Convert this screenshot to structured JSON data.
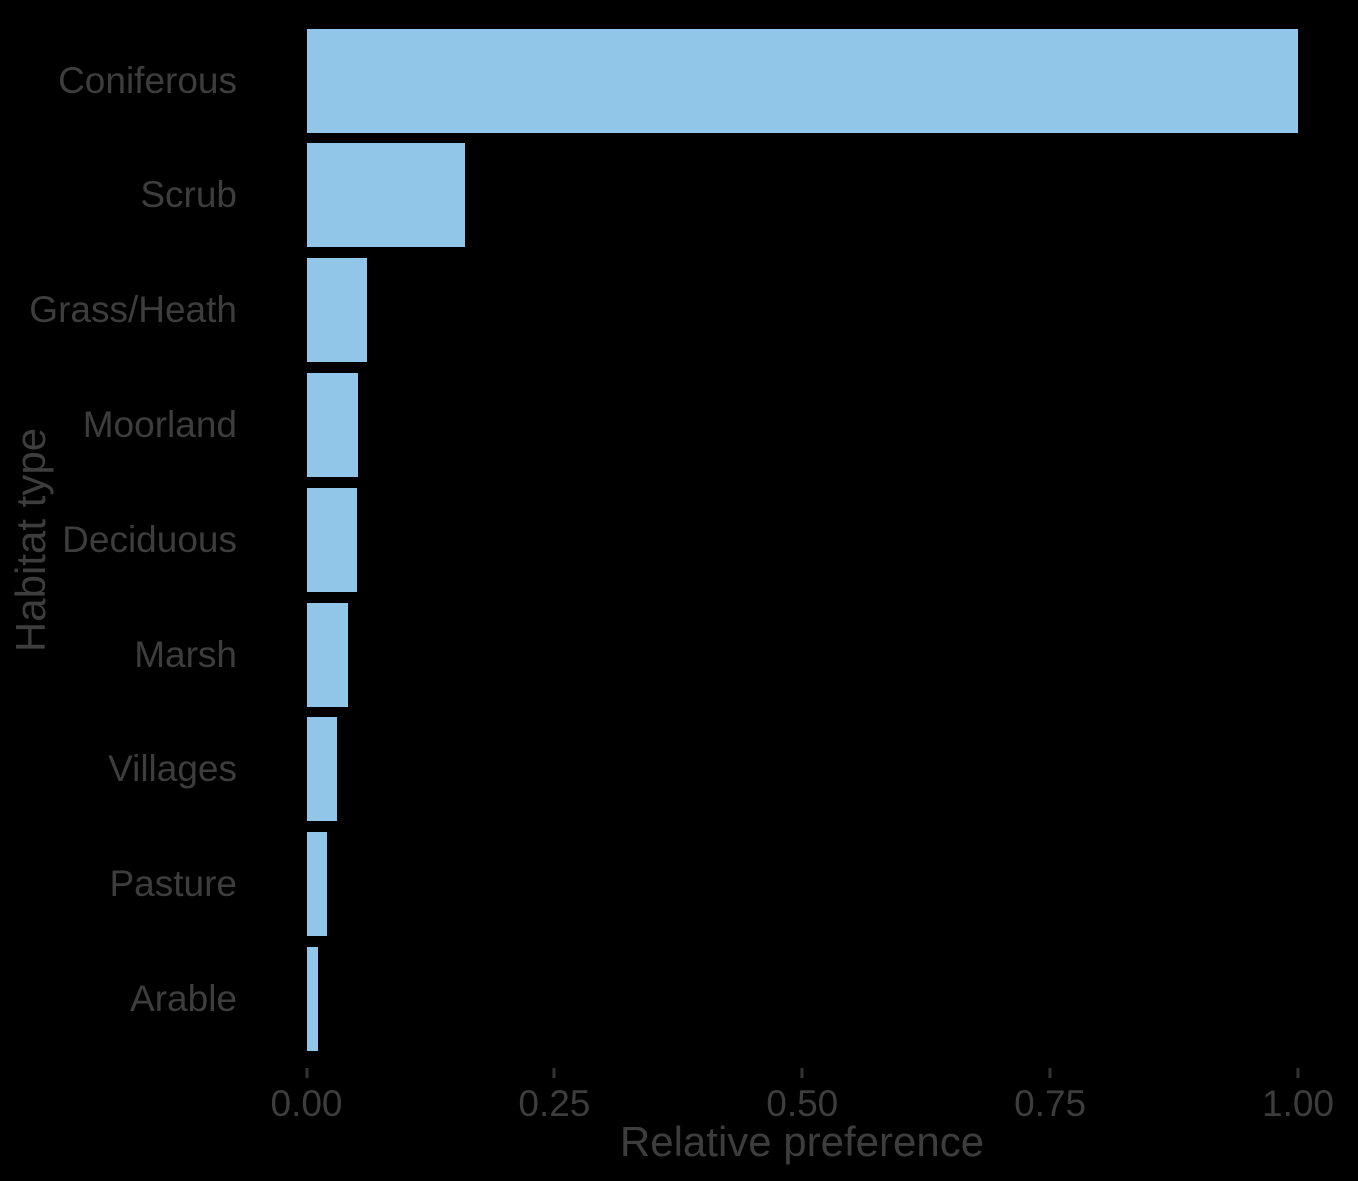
{
  "chart_data": {
    "type": "bar",
    "orientation": "horizontal",
    "title": "",
    "xlabel": "Relative preference",
    "ylabel": "Habitat type",
    "categories": [
      "Coniferous",
      "Scrub",
      "Grass/Heath",
      "Moorland",
      "Deciduous",
      "Marsh",
      "Villages",
      "Pasture",
      "Arable"
    ],
    "values": [
      1.0,
      0.16,
      0.061,
      0.052,
      0.051,
      0.042,
      0.031,
      0.021,
      0.012
    ],
    "x_ticks": [
      0,
      0.25,
      0.5,
      0.75,
      1.0
    ],
    "x_tick_labels": [
      "0.00",
      "0.25",
      "0.50",
      "0.75",
      "1.00"
    ],
    "xlim": [
      0,
      1.0
    ],
    "grid": false,
    "legend": false,
    "colors": {
      "background": "#000000",
      "bar_fill": "#92C6E8",
      "text": "#3D3D3D",
      "tick_mark": "#333333"
    }
  }
}
